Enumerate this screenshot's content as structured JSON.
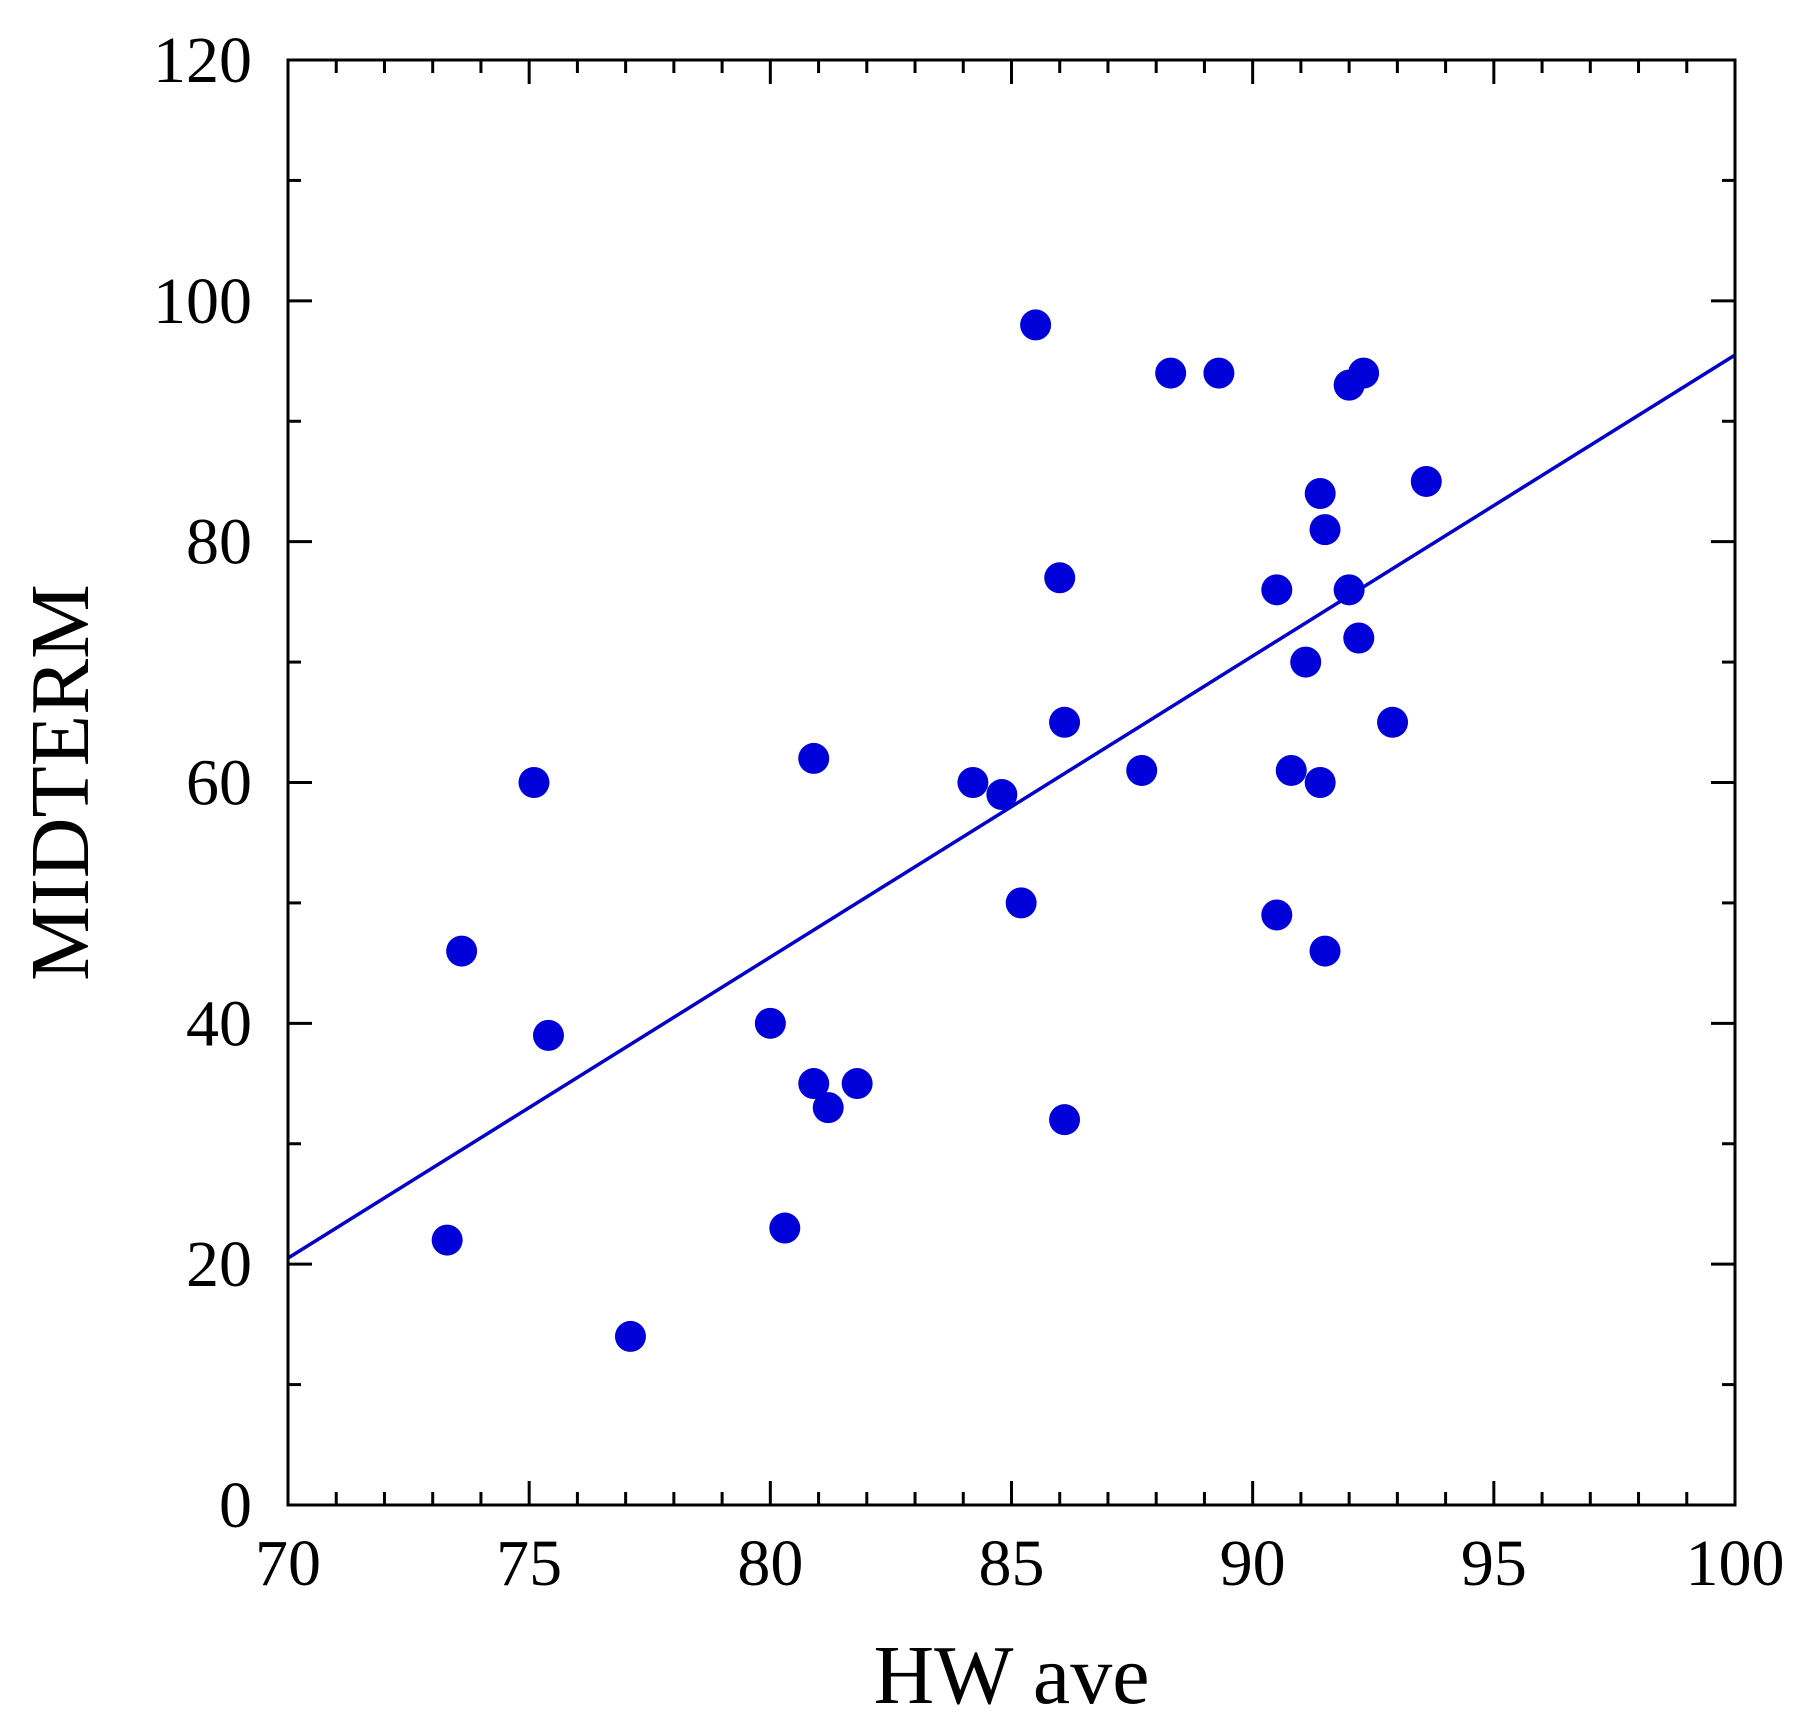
{
  "chart_data": {
    "type": "scatter",
    "xlabel": "HW ave",
    "ylabel": "MIDTERM",
    "xlim": [
      70,
      100
    ],
    "ylim": [
      0,
      120
    ],
    "x_ticks": [
      "70",
      "75",
      "80",
      "85",
      "90",
      "95",
      "100"
    ],
    "y_ticks": [
      "0",
      "20",
      "40",
      "60",
      "80",
      "100",
      "120"
    ],
    "grid": false,
    "legend": "none",
    "marker_color": "#0000d8",
    "line_color": "#0000c8",
    "points": [
      {
        "x": 73.3,
        "y": 22
      },
      {
        "x": 73.6,
        "y": 46
      },
      {
        "x": 75.1,
        "y": 60
      },
      {
        "x": 75.4,
        "y": 39
      },
      {
        "x": 77.1,
        "y": 14
      },
      {
        "x": 80.0,
        "y": 40
      },
      {
        "x": 80.3,
        "y": 23
      },
      {
        "x": 80.9,
        "y": 62
      },
      {
        "x": 80.9,
        "y": 35
      },
      {
        "x": 81.2,
        "y": 33
      },
      {
        "x": 81.8,
        "y": 35
      },
      {
        "x": 84.2,
        "y": 60
      },
      {
        "x": 84.8,
        "y": 59
      },
      {
        "x": 85.2,
        "y": 50
      },
      {
        "x": 85.5,
        "y": 98
      },
      {
        "x": 86.0,
        "y": 77
      },
      {
        "x": 86.1,
        "y": 65
      },
      {
        "x": 86.1,
        "y": 32
      },
      {
        "x": 87.7,
        "y": 61
      },
      {
        "x": 88.3,
        "y": 94
      },
      {
        "x": 89.3,
        "y": 94
      },
      {
        "x": 90.5,
        "y": 76
      },
      {
        "x": 90.5,
        "y": 49
      },
      {
        "x": 90.8,
        "y": 61
      },
      {
        "x": 91.1,
        "y": 70
      },
      {
        "x": 91.4,
        "y": 84
      },
      {
        "x": 91.4,
        "y": 60
      },
      {
        "x": 91.5,
        "y": 81
      },
      {
        "x": 91.5,
        "y": 46
      },
      {
        "x": 92.0,
        "y": 93
      },
      {
        "x": 92.0,
        "y": 76
      },
      {
        "x": 92.2,
        "y": 72
      },
      {
        "x": 92.3,
        "y": 94
      },
      {
        "x": 92.9,
        "y": 65
      },
      {
        "x": 93.6,
        "y": 85
      }
    ],
    "fit_line": {
      "x": [
        70,
        100
      ],
      "y": [
        20.5,
        95.5
      ]
    }
  }
}
